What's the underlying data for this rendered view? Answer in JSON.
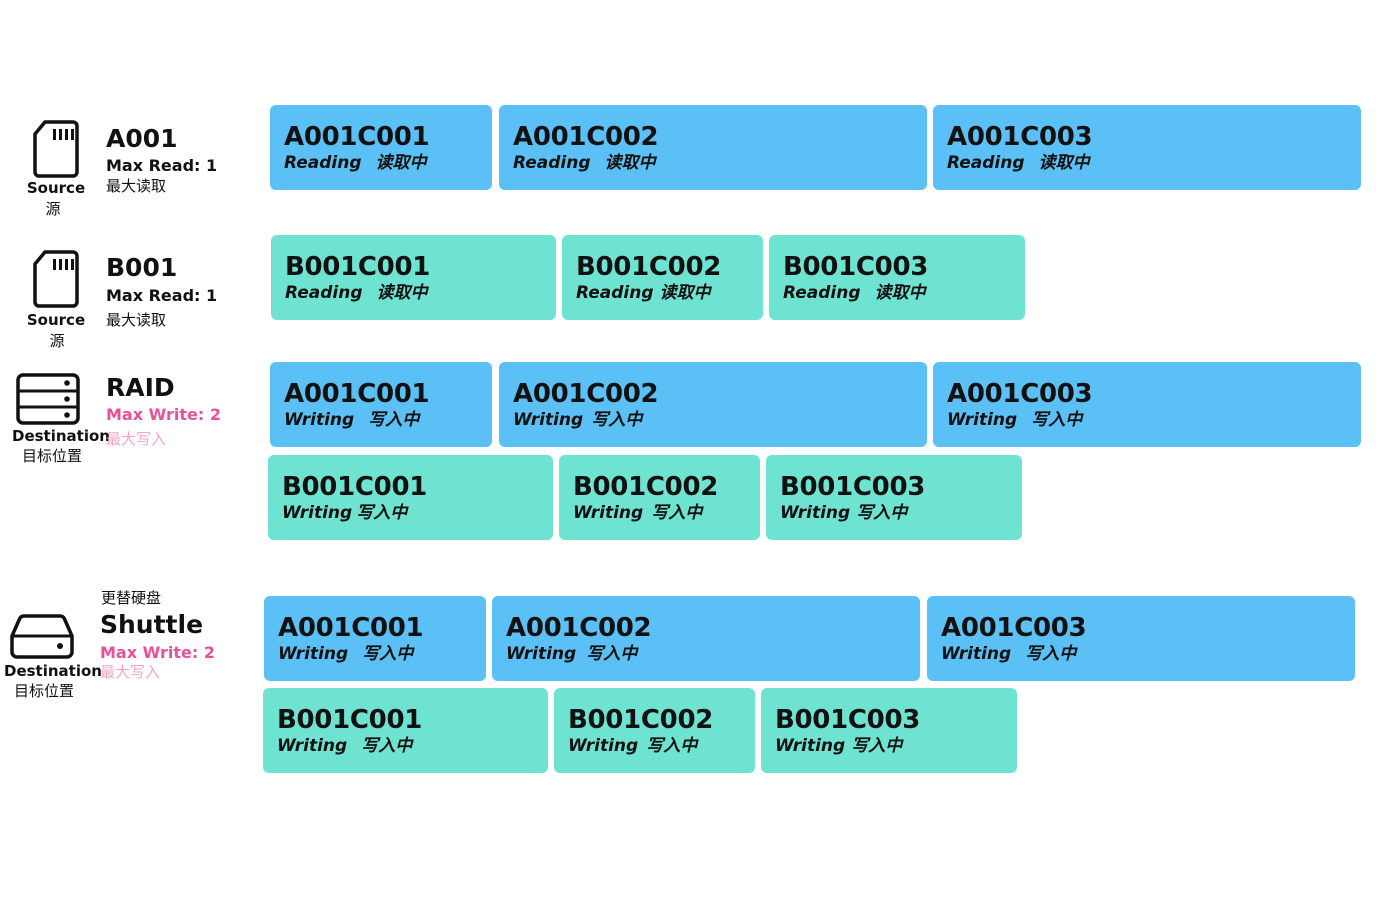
{
  "devices": {
    "a001": {
      "name": "A001",
      "limit": "Max Read: 1",
      "limit_zh": "最大读取",
      "type": "Source",
      "type_zh": "源",
      "icon": "sd-card-icon"
    },
    "b001": {
      "name": "B001",
      "limit": "Max Read: 1",
      "limit_zh": "最大读取",
      "type": "Source",
      "type_zh": "源",
      "icon": "sd-card-icon"
    },
    "raid": {
      "name": "RAID",
      "limit": "Max Write: 2",
      "limit_zh": "最大写入",
      "type": "Destination",
      "type_zh": "目标位置",
      "icon": "raid-server-icon"
    },
    "shuttle": {
      "name": "Shuttle",
      "extra_zh": "更替硬盘",
      "limit": "Max Write: 2",
      "limit_zh": "最大写入",
      "type": "Destination",
      "type_zh": "目标位置",
      "icon": "hard-drive-icon"
    }
  },
  "clips": {
    "a001_read": [
      {
        "name": "A001C001",
        "status": "Reading",
        "status_zh": "读取中"
      },
      {
        "name": "A001C002",
        "status": "Reading",
        "status_zh": "读取中"
      },
      {
        "name": "A001C003",
        "status": "Reading",
        "status_zh": "读取中"
      }
    ],
    "b001_read": [
      {
        "name": "B001C001",
        "status": "Reading",
        "status_zh": "读取中"
      },
      {
        "name": "B001C002",
        "status": "Reading",
        "status_zh": "读取中"
      },
      {
        "name": "B001C003",
        "status": "Reading",
        "status_zh": "读取中"
      }
    ],
    "raid_write_a": [
      {
        "name": "A001C001",
        "status": "Writing",
        "status_zh": "写入中"
      },
      {
        "name": "A001C002",
        "status": "Writing",
        "status_zh": "写入中"
      },
      {
        "name": "A001C003",
        "status": "Writing",
        "status_zh": "写入中"
      }
    ],
    "raid_write_b": [
      {
        "name": "B001C001",
        "status": "Writing",
        "status_zh": "写入中"
      },
      {
        "name": "B001C002",
        "status": "Writing",
        "status_zh": "写入中"
      },
      {
        "name": "B001C003",
        "status": "Writing",
        "status_zh": "写入中"
      }
    ],
    "shuttle_write_a": [
      {
        "name": "A001C001",
        "status": "Writing",
        "status_zh": "写入中"
      },
      {
        "name": "A001C002",
        "status": "Writing",
        "status_zh": "写入中"
      },
      {
        "name": "A001C003",
        "status": "Writing",
        "status_zh": "写入中"
      }
    ],
    "shuttle_write_b": [
      {
        "name": "B001C001",
        "status": "Writing",
        "status_zh": "写入中"
      },
      {
        "name": "B001C002",
        "status": "Writing",
        "status_zh": "写入中"
      },
      {
        "name": "B001C003",
        "status": "Writing",
        "status_zh": "写入中"
      }
    ]
  },
  "colors": {
    "a_series": "#5bc0f5",
    "b_series": "#6fe3d1",
    "write_limit": "#e8509a"
  }
}
